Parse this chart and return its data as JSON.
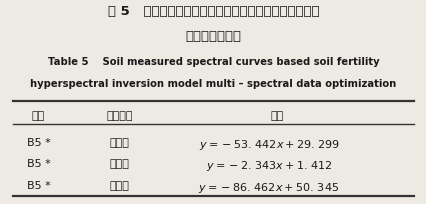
{
  "title_zh_line1": "表 5   基于土壤实测光谱曲线土壤肥力高光谱反演模型的",
  "title_zh_line2": "多光谱数据优化",
  "title_en_line1": "Table 5    Soil measured spectral curves based soil fertility",
  "title_en_line2": "hyperspectral inversion model multi – spectral data optimization",
  "headers": [
    "波段",
    "肥力参数",
    "模型"
  ],
  "col1": [
    "B5 *",
    "B5 *",
    "B5 *"
  ],
  "col2": [
    "有机质",
    "有效钾",
    "有效磷"
  ],
  "model1": "y = −53. 442x +29. 299",
  "model2": "y = −2. 343x +1. 412",
  "model3": "y = −86. 462x +50. 345",
  "bg_color": "#edeae4",
  "text_color": "#1a1a1a",
  "line_color": "#333333"
}
